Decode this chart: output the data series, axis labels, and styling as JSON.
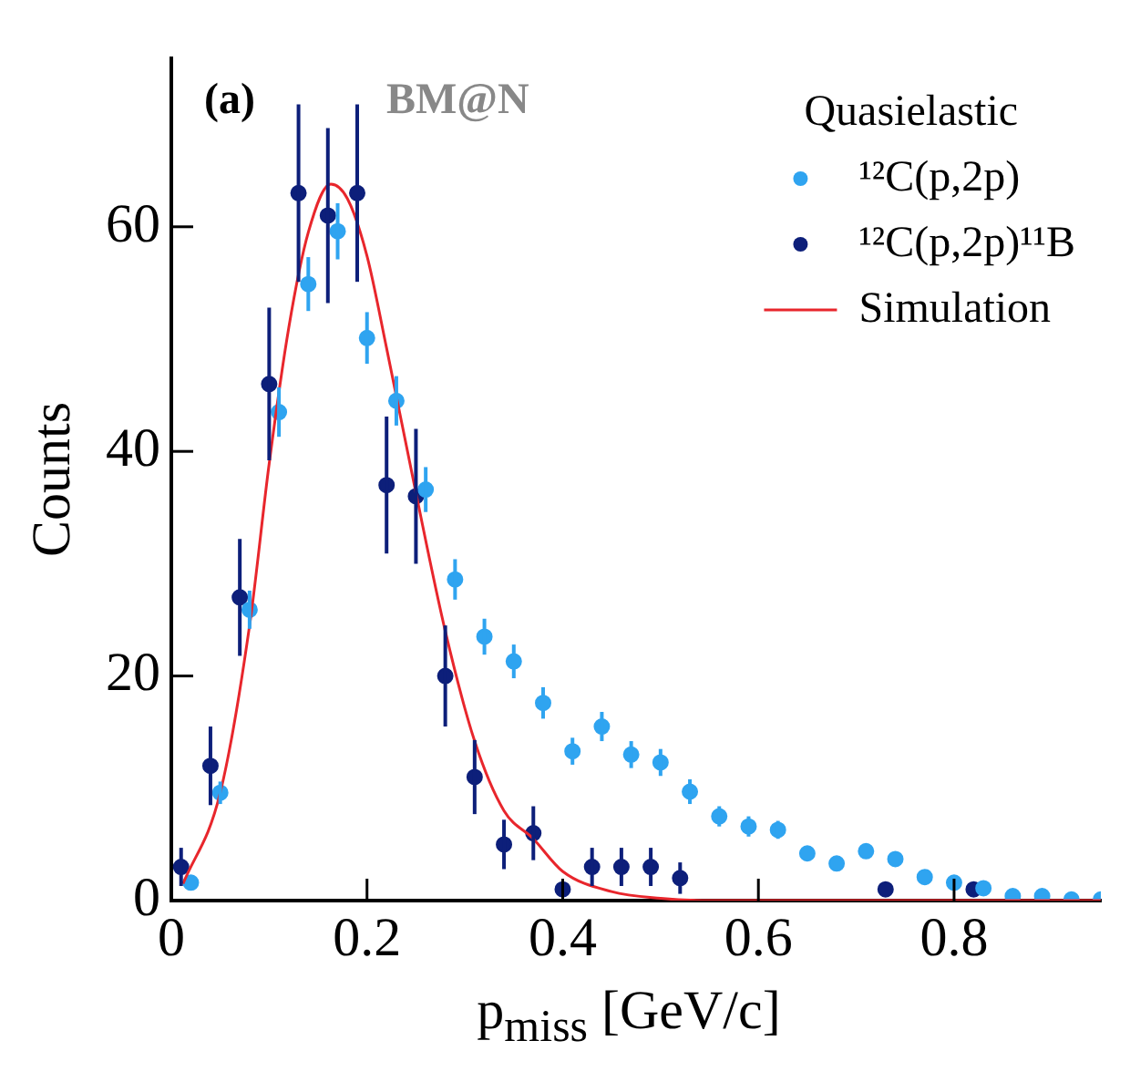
{
  "chart_data": {
    "type": "scatter",
    "xlabel": "p$_{miss}$ [GeV/c]",
    "ylabel": "Counts",
    "legend_title": "Quasielastic",
    "legend": "top right",
    "grid": false,
    "marker": "circle",
    "xlim": [
      0,
      0.95
    ],
    "xticks": [
      0,
      0.2,
      0.4,
      0.6,
      0.8
    ],
    "ylim": [
      0,
      75
    ],
    "yticks": [
      0,
      20,
      40,
      60
    ],
    "annotations": [
      "(a)",
      "BM@N"
    ],
    "series": [
      {
        "name": "¹²C(p,2p)",
        "color": "#2fa4f0",
        "x": [
          0.02,
          0.05,
          0.08,
          0.11,
          0.14,
          0.17,
          0.2,
          0.23,
          0.26,
          0.29,
          0.32,
          0.35,
          0.38,
          0.41,
          0.44,
          0.47,
          0.5,
          0.53,
          0.56,
          0.59,
          0.62,
          0.65,
          0.68,
          0.71,
          0.74,
          0.77,
          0.8,
          0.83,
          0.86,
          0.89,
          0.92,
          0.95
        ],
        "values": [
          1.6,
          9.6,
          25.9,
          43.5,
          54.9,
          59.6,
          50.1,
          44.5,
          36.6,
          28.6,
          23.5,
          21.3,
          17.6,
          13.3,
          15.5,
          13,
          12.3,
          9.7,
          7.5,
          6.6,
          6.3,
          4.2,
          3.3,
          4.4,
          3.7,
          2.1,
          1.6,
          1.1,
          0.4,
          0.4,
          0.1,
          0.1
        ],
        "errors": [
          null,
          1,
          1.7,
          2.2,
          2.4,
          2.5,
          2.3,
          2.2,
          2,
          1.8,
          1.6,
          1.5,
          1.4,
          1.2,
          1.3,
          1.2,
          1.2,
          1.1,
          0.9,
          0.9,
          0.8,
          null,
          null,
          null,
          null,
          null,
          null,
          null,
          null,
          null,
          null,
          null
        ]
      },
      {
        "name": "¹²C(p,2p)¹¹B",
        "color": "#0d1f7a",
        "x": [
          0.01,
          0.04,
          0.07,
          0.1,
          0.13,
          0.16,
          0.19,
          0.22,
          0.25,
          0.28,
          0.31,
          0.34,
          0.37,
          0.4,
          0.43,
          0.46,
          0.49,
          0.52,
          0.73,
          0.82
        ],
        "values": [
          3,
          12,
          27,
          46,
          63,
          61,
          63,
          37,
          36,
          20,
          11,
          5,
          6,
          1,
          3,
          3,
          3,
          2,
          1,
          1
        ],
        "errors": [
          1.7,
          3.5,
          5.2,
          6.8,
          7.9,
          7.8,
          7.9,
          6.1,
          6,
          4.5,
          3.3,
          2.2,
          2.4,
          null,
          1.7,
          1.7,
          1.7,
          1.4,
          null,
          null
        ]
      },
      {
        "name": "Simulation",
        "color": "#e8262c",
        "type": "line",
        "marker": "none",
        "x": [
          0.012,
          0.05,
          0.08,
          0.1,
          0.12,
          0.14,
          0.163,
          0.18,
          0.2,
          0.22,
          0.25,
          0.28,
          0.31,
          0.34,
          0.37,
          0.4,
          0.45,
          0.5,
          0.55,
          0.6,
          0.7,
          0.8,
          0.95
        ],
        "values": [
          1.5,
          9.6,
          24.5,
          38.9,
          51,
          59.5,
          63.8,
          62.5,
          57.4,
          49.2,
          36.3,
          24,
          14.2,
          8,
          5.5,
          2.6,
          0.8,
          0.2,
          0,
          0,
          0,
          0,
          0
        ]
      }
    ]
  }
}
